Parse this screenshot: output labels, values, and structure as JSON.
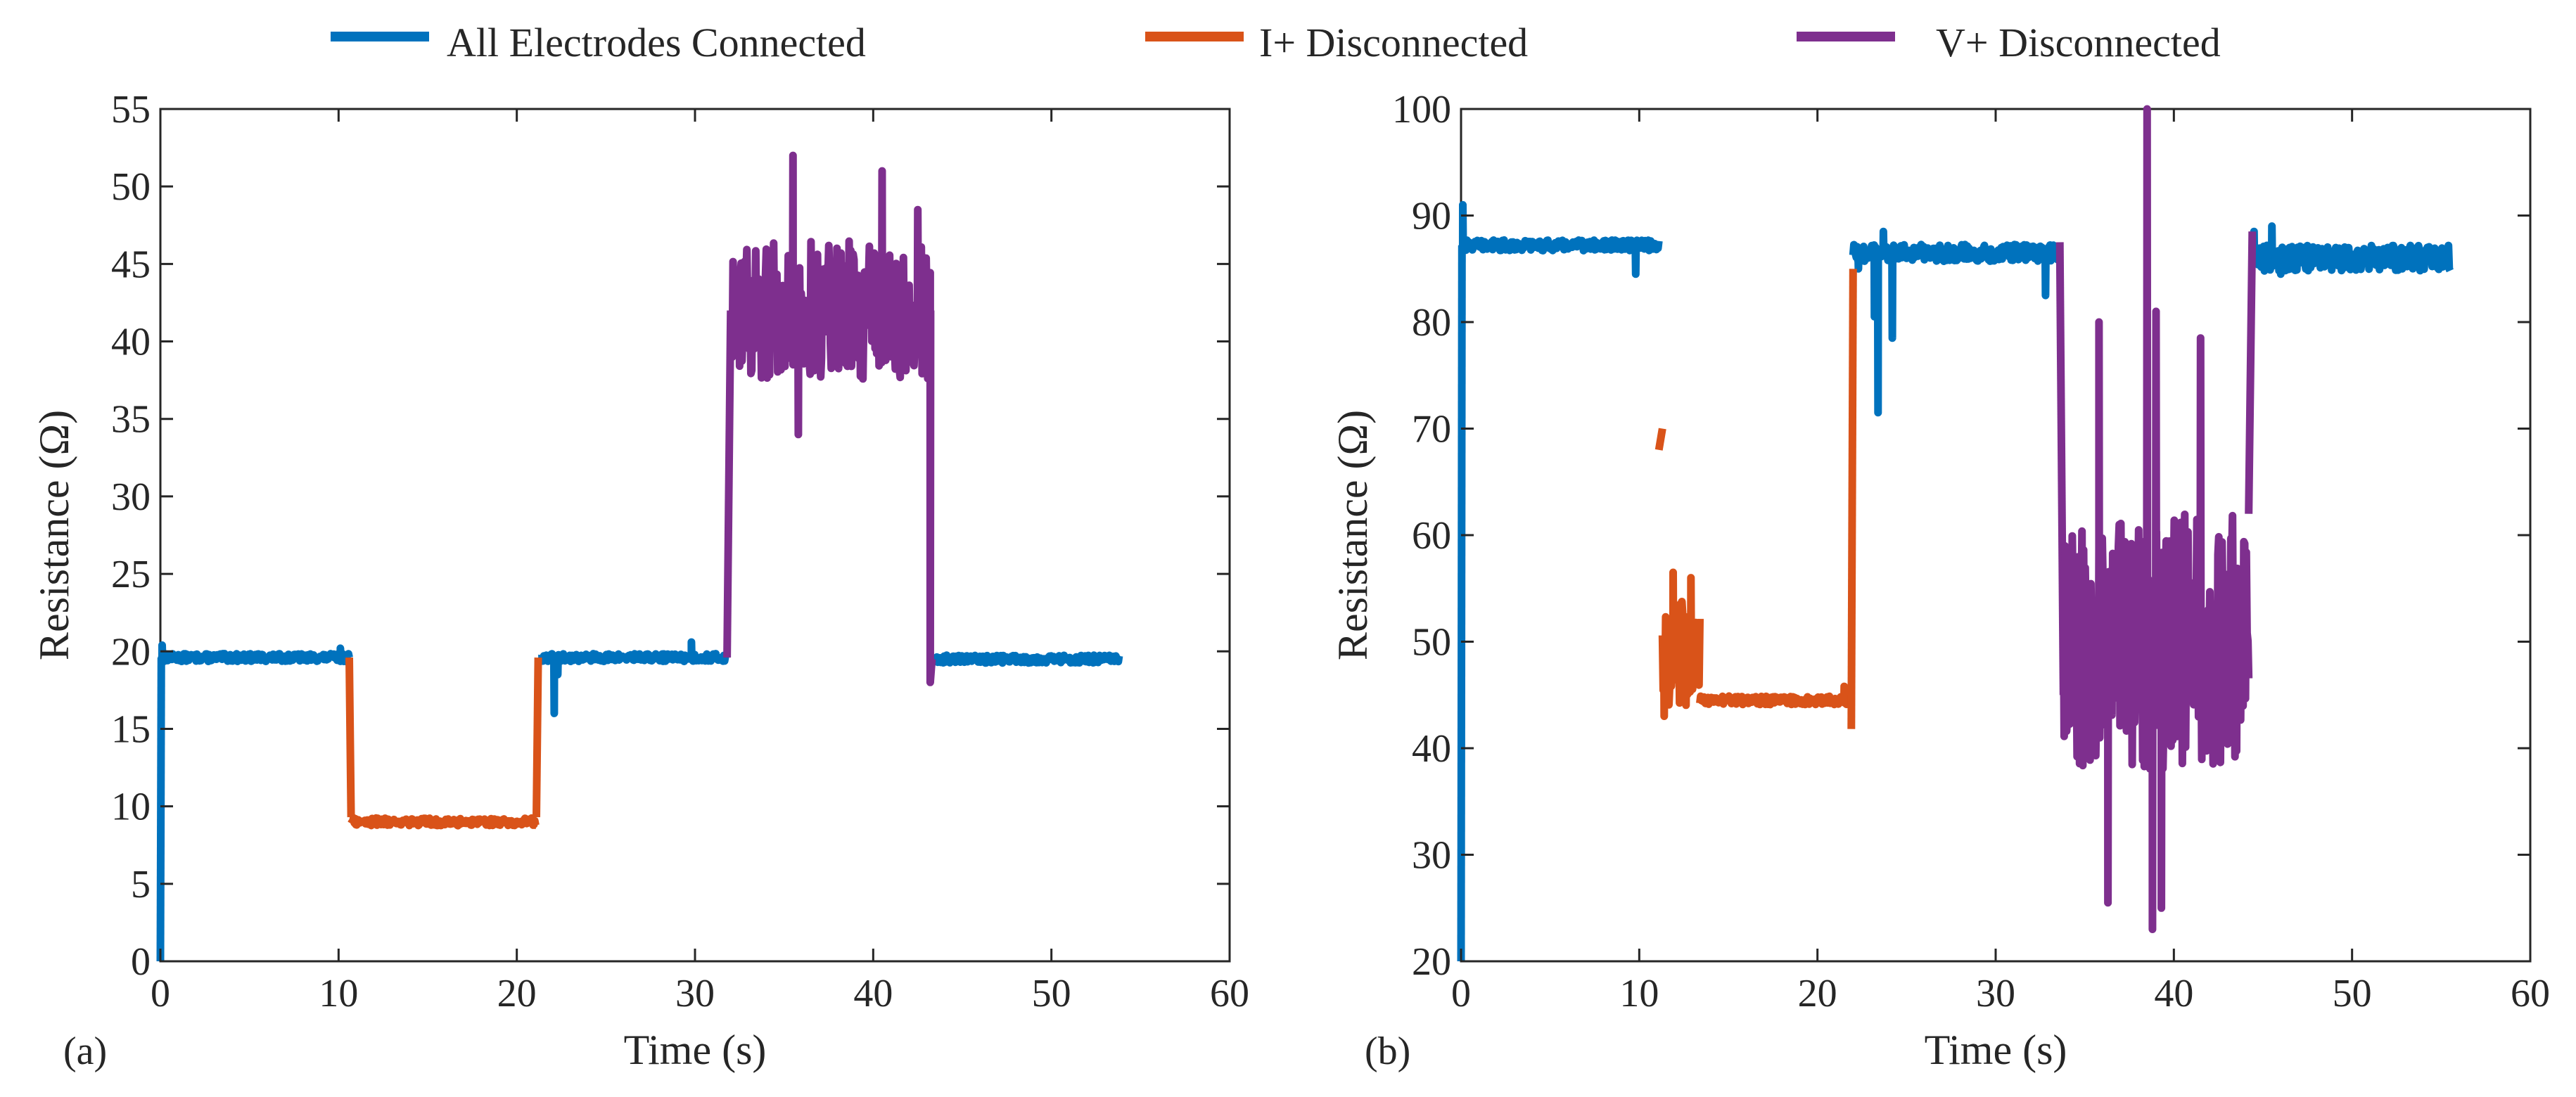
{
  "legend": [
    {
      "label": "All Electrodes Connected",
      "color": "#0072BD"
    },
    {
      "label": "I+ Disconnected",
      "color": "#D95319"
    },
    {
      "label": "V+ Disconnected",
      "color": "#7E2F8E"
    }
  ],
  "chart_data": [
    {
      "type": "line",
      "panel_label": "(a)",
      "xlabel": "Time (s)",
      "ylabel": "Resistance (Ω)",
      "xlim": [
        0,
        60
      ],
      "ylim": [
        0,
        55
      ],
      "xticks": [
        0,
        10,
        20,
        30,
        40,
        50,
        60
      ],
      "yticks": [
        0,
        5,
        10,
        15,
        20,
        25,
        30,
        35,
        40,
        45,
        50,
        55
      ],
      "grid": false,
      "series": [
        {
          "name": "All Electrodes Connected",
          "color": "#0072BD",
          "segments": [
            {
              "t0": 0.0,
              "t1": 0.05,
              "base": 0,
              "end": 19.6,
              "noise": 0
            },
            {
              "t0": 0.05,
              "t1": 10.6,
              "base": 19.6,
              "noise": 0.25,
              "spikes": [
                [
                  0.1,
                  20.4
                ],
                [
                  10.1,
                  20.2
                ]
              ]
            },
            {
              "t0": 21.2,
              "t1": 31.8,
              "base": 19.6,
              "noise": 0.25,
              "spikes": [
                [
                  22.1,
                  16.0
                ],
                [
                  22.3,
                  18.5
                ],
                [
                  29.8,
                  20.6
                ]
              ]
            },
            {
              "t0": 43.3,
              "t1": 53.8,
              "base": 19.5,
              "noise": 0.25
            }
          ]
        },
        {
          "name": "I+ Disconnected",
          "color": "#D95319",
          "segments": [
            {
              "t0": 10.6,
              "t1": 10.7,
              "base": 19.6,
              "end": 9.3,
              "noise": 0
            },
            {
              "t0": 10.7,
              "t1": 21.1,
              "base": 9.0,
              "noise": 0.25
            },
            {
              "t0": 21.1,
              "t1": 21.2,
              "base": 9.3,
              "end": 19.6,
              "noise": 0
            }
          ]
        },
        {
          "name": "V+ Disconnected",
          "color": "#7E2F8E",
          "segments": [
            {
              "t0": 31.8,
              "t1": 32.0,
              "base": 19.6,
              "end": 42.0,
              "noise": 0
            },
            {
              "t0": 32.0,
              "t1": 43.2,
              "base": 42.0,
              "noise": 4.5,
              "spikes": [
                [
                  35.5,
                  52.0
                ],
                [
                  35.8,
                  34.0
                ],
                [
                  40.5,
                  51.0
                ],
                [
                  42.5,
                  48.5
                ],
                [
                  43.2,
                  18.0
                ]
              ]
            },
            {
              "t0": 43.2,
              "t1": 43.3,
              "base": 18.0,
              "end": 19.5,
              "noise": 0
            }
          ]
        }
      ]
    },
    {
      "type": "line",
      "panel_label": "(b)",
      "xlabel": "Time (s)",
      "ylabel": "Resistance (Ω)",
      "xlim": [
        0,
        60
      ],
      "ylim": [
        20,
        100
      ],
      "xticks": [
        0,
        10,
        20,
        30,
        40,
        50,
        60
      ],
      "yticks": [
        20,
        30,
        40,
        50,
        60,
        70,
        80,
        90,
        100
      ],
      "grid": false,
      "series": [
        {
          "name": "All Electrodes Connected",
          "color": "#0072BD",
          "segments": [
            {
              "t0": 0.0,
              "t1": 0.05,
              "base": 20,
              "end": 87.2,
              "noise": 0
            },
            {
              "t0": 0.05,
              "t1": 11.1,
              "base": 87.2,
              "noise": 0.5,
              "spikes": [
                [
                  0.1,
                  91.0
                ],
                [
                  9.8,
                  84.5
                ]
              ]
            },
            {
              "t0": 22.0,
              "t1": 33.6,
              "base": 86.5,
              "noise": 0.8,
              "spikes": [
                [
                  22.3,
                  85.0
                ],
                [
                  23.2,
                  80.5
                ],
                [
                  23.4,
                  71.5
                ],
                [
                  23.7,
                  88.5
                ],
                [
                  24.2,
                  78.5
                ],
                [
                  25.0,
                  86.5
                ],
                [
                  32.8,
                  82.5
                ]
              ]
            },
            {
              "t0": 44.4,
              "t1": 55.5,
              "base": 86.0,
              "noise": 1.2,
              "spikes": [
                [
                  44.5,
                  88.5
                ],
                [
                  45.5,
                  89.0
                ],
                [
                  46.0,
                  84.5
                ]
              ]
            }
          ]
        },
        {
          "name": "I+ Disconnected",
          "color": "#D95319",
          "segments": [
            {
              "t0": 11.1,
              "t1": 11.3,
              "base": 68.0,
              "end": 70.0,
              "noise": 0
            },
            {
              "t0": 11.3,
              "t1": 13.4,
              "base": 49.0,
              "noise": 5.0,
              "spikes": [
                [
                  11.4,
                  43.0
                ],
                [
                  11.9,
                  56.5
                ],
                [
                  12.6,
                  44.5
                ],
                [
                  12.9,
                  56.0
                ]
              ]
            },
            {
              "t0": 13.4,
              "t1": 21.9,
              "base": 44.5,
              "noise": 0.4,
              "spikes": [
                [
                  21.5,
                  45.8
                ]
              ]
            },
            {
              "t0": 21.9,
              "t1": 22.0,
              "base": 41.8,
              "end": 85.0,
              "noise": 0
            }
          ]
        },
        {
          "name": "V+ Disconnected",
          "color": "#7E2F8E",
          "segments": [
            {
              "t0": 33.6,
              "t1": 33.8,
              "base": 87.5,
              "end": 45.0,
              "noise": 0
            },
            {
              "t0": 33.8,
              "t1": 44.2,
              "base": 50.0,
              "noise": 12.0,
              "spikes": [
                [
                  35.8,
                  80.0
                ],
                [
                  36.3,
                  25.5
                ],
                [
                  38.5,
                  100
                ],
                [
                  38.8,
                  23.0
                ],
                [
                  39.0,
                  81.0
                ],
                [
                  41.5,
                  78.5
                ],
                [
                  39.3,
                  25.0
                ]
              ]
            },
            {
              "t0": 44.2,
              "t1": 44.4,
              "base": 62.0,
              "end": 88.5,
              "noise": 0
            }
          ]
        }
      ]
    }
  ]
}
